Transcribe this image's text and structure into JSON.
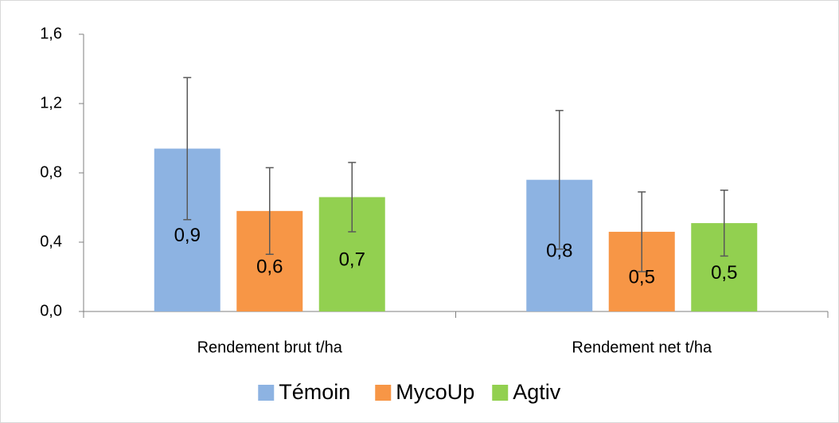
{
  "chart_data": {
    "type": "bar",
    "categories": [
      "Rendement brut t/ha",
      "Rendement net  t/ha"
    ],
    "series": [
      {
        "name": "Témoin",
        "color": "#8db3e2",
        "values": [
          0.94,
          0.76
        ],
        "errors": [
          0.41,
          0.4
        ],
        "value_labels": [
          "0,9",
          "0,8"
        ]
      },
      {
        "name": "MycoUp",
        "color": "#f79646",
        "values": [
          0.58,
          0.46
        ],
        "errors": [
          0.25,
          0.23
        ],
        "value_labels": [
          "0,6",
          "0,5"
        ]
      },
      {
        "name": "Agtiv",
        "color": "#92d050",
        "values": [
          0.66,
          0.51
        ],
        "errors": [
          0.2,
          0.19
        ],
        "value_labels": [
          "0,7",
          "0,5"
        ]
      }
    ],
    "ylim": [
      0,
      1.6
    ],
    "yticks": [
      {
        "value": 0,
        "label": "0,0"
      },
      {
        "value": 0.4,
        "label": "0,4"
      },
      {
        "value": 0.8,
        "label": "0,8"
      },
      {
        "value": 1.2,
        "label": "1,2"
      },
      {
        "value": 1.6,
        "label": "1,6"
      }
    ],
    "grid": false,
    "legend": "bottom"
  }
}
